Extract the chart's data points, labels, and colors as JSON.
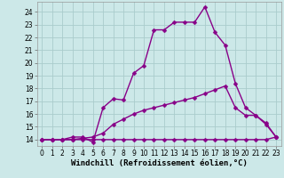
{
  "xlabel": "Windchill (Refroidissement éolien,°C)",
  "bg_color": "#cce8e8",
  "grid_color": "#aacccc",
  "line_color": "#880088",
  "xlim": [
    -0.5,
    23.5
  ],
  "ylim": [
    13.5,
    24.8
  ],
  "xticks": [
    0,
    1,
    2,
    3,
    4,
    5,
    6,
    7,
    8,
    9,
    10,
    11,
    12,
    13,
    14,
    15,
    16,
    17,
    18,
    19,
    20,
    21,
    22,
    23
  ],
  "yticks": [
    14,
    15,
    16,
    17,
    18,
    19,
    20,
    21,
    22,
    23,
    24
  ],
  "curve1_x": [
    0,
    1,
    2,
    3,
    4,
    5,
    6,
    7,
    8,
    9,
    10,
    11,
    12,
    13,
    14,
    15,
    16,
    17,
    18,
    19,
    20,
    21,
    22,
    23
  ],
  "curve1_y": [
    14.0,
    14.0,
    14.0,
    14.0,
    14.0,
    14.0,
    14.0,
    14.0,
    14.0,
    14.0,
    14.0,
    14.0,
    14.0,
    14.0,
    14.0,
    14.0,
    14.0,
    14.0,
    14.0,
    14.0,
    14.0,
    14.0,
    14.0,
    14.2
  ],
  "curve2_x": [
    0,
    1,
    2,
    3,
    4,
    5,
    6,
    7,
    8,
    9,
    10,
    11,
    12,
    13,
    14,
    15,
    16,
    17,
    18,
    19,
    20,
    21,
    22,
    23
  ],
  "curve2_y": [
    14.0,
    14.0,
    14.0,
    14.0,
    14.1,
    14.2,
    14.5,
    15.2,
    15.6,
    16.0,
    16.3,
    16.5,
    16.7,
    16.9,
    17.1,
    17.3,
    17.6,
    17.9,
    18.2,
    16.5,
    15.9,
    15.9,
    15.3,
    14.2
  ],
  "curve3_x": [
    0,
    1,
    2,
    3,
    4,
    5,
    6,
    7,
    8,
    9,
    10,
    11,
    12,
    13,
    14,
    15,
    16,
    17,
    18,
    19,
    20,
    21,
    22,
    23
  ],
  "curve3_y": [
    14.0,
    14.0,
    14.0,
    14.2,
    14.2,
    13.8,
    16.5,
    17.2,
    17.1,
    19.2,
    19.8,
    22.6,
    22.6,
    23.2,
    23.2,
    23.2,
    24.4,
    22.4,
    21.4,
    18.4,
    16.5,
    15.9,
    15.2,
    14.2
  ],
  "marker_style": "D",
  "marker_size": 2.5,
  "line_width": 1.0,
  "tick_fontsize": 5.5,
  "xlabel_fontsize": 6.5
}
